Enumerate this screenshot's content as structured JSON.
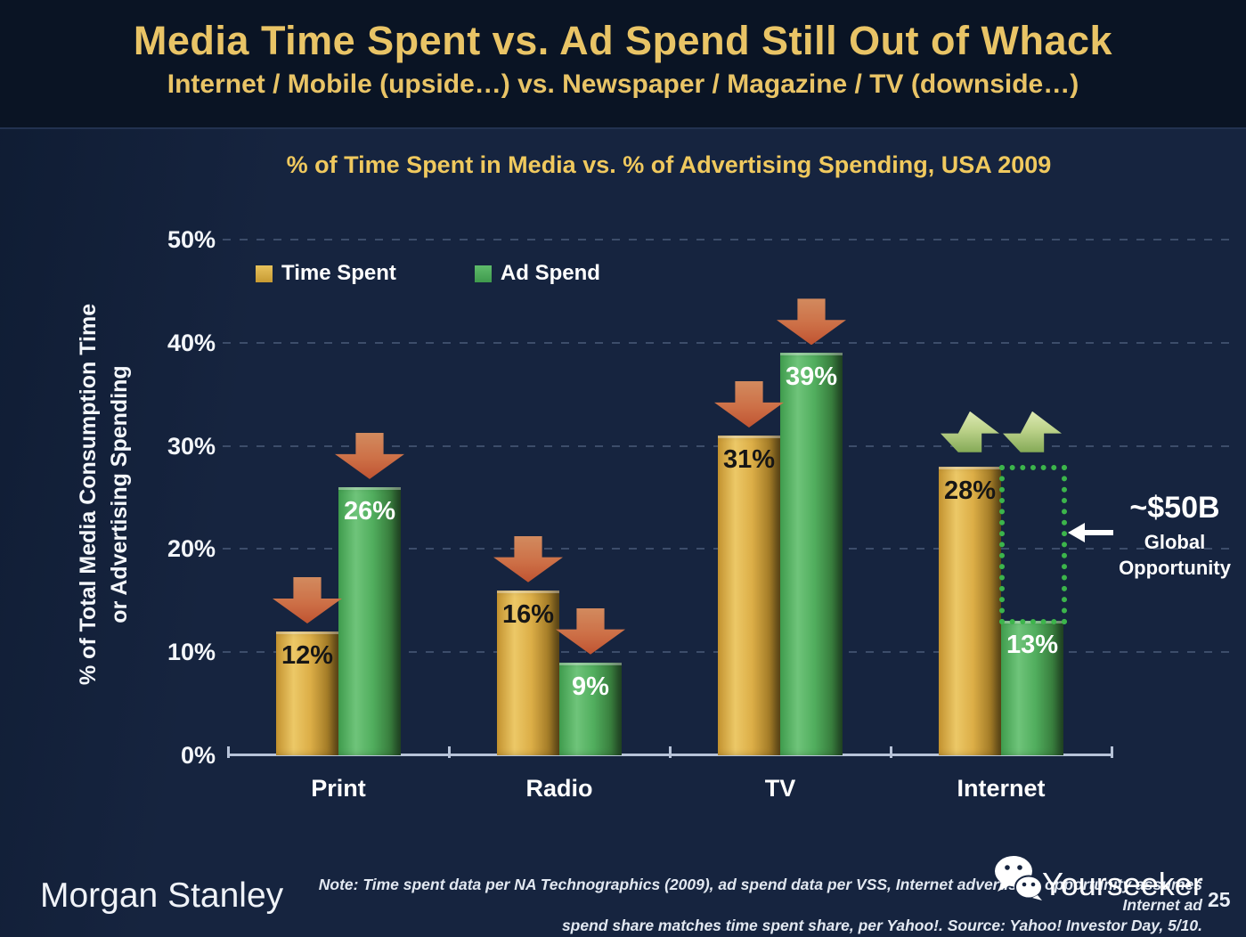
{
  "slide": {
    "title": "Media Time Spent vs. Ad Spend Still Out of Whack",
    "subtitle": "Internet / Mobile (upside…) vs. Newspaper / Magazine / TV (downside…)"
  },
  "chart_data": {
    "type": "bar",
    "title": "% of Time Spent in Media vs. % of Advertising Spending, USA 2009",
    "categories": [
      "Print",
      "Radio",
      "TV",
      "Internet"
    ],
    "series": [
      {
        "name": "Time Spent",
        "color": "#dcae47",
        "values": [
          12,
          16,
          31,
          28
        ],
        "labels": [
          "12%",
          "16%",
          "31%",
          "28%"
        ]
      },
      {
        "name": "Ad Spend",
        "color": "#4fae5c",
        "values": [
          26,
          9,
          39,
          13
        ],
        "labels": [
          "26%",
          "9%",
          "39%",
          "13%"
        ]
      }
    ],
    "ylabel_line1": "% of Total Media Consumption Time",
    "ylabel_line2": "or Advertising Spending",
    "yticks": [
      "0%",
      "10%",
      "20%",
      "30%",
      "40%",
      "50%"
    ],
    "ylim": [
      0,
      50
    ],
    "grid": "dashed horizontal lines every 10%",
    "legend_position": "top-left inside plot",
    "annotations": {
      "down_arrows_on": [
        "Print Time Spent",
        "Print Ad Spend",
        "Radio Time Spent",
        "Radio Ad Spend",
        "TV Time Spent",
        "TV Ad Spend"
      ],
      "up_arrows_on": [
        "Internet Time Spent",
        "Internet Ad Spend"
      ],
      "dotted_outline": "gap between Internet ad spend (13%) and time spent (28%)",
      "opportunity_value": "~$50B",
      "opportunity_label_line1": "Global",
      "opportunity_label_line2": "Opportunity"
    }
  },
  "footer": {
    "brand": "Morgan Stanley",
    "note_line1": "Note: Time spent data per NA Technographics (2009), ad spend data per VSS, Internet advertising opportunity assumes Internet ad",
    "note_line2": "spend share matches time spent share, per Yahoo!. Source: Yahoo! Investor Day, 5/10.",
    "watermark": "Yourseeker",
    "page_number": "25"
  },
  "colors": {
    "background": "#16243f",
    "title_background": "#0a1424",
    "accent_gold_text": "#e9c466",
    "bar_gold": "#dcae47",
    "bar_green": "#4fae5c",
    "arrow_red": "#c25634",
    "arrow_up_green": "#a5c279",
    "dotted_green": "#3cb54b",
    "axis": "#b7c3d8",
    "text_white": "#ffffff"
  }
}
